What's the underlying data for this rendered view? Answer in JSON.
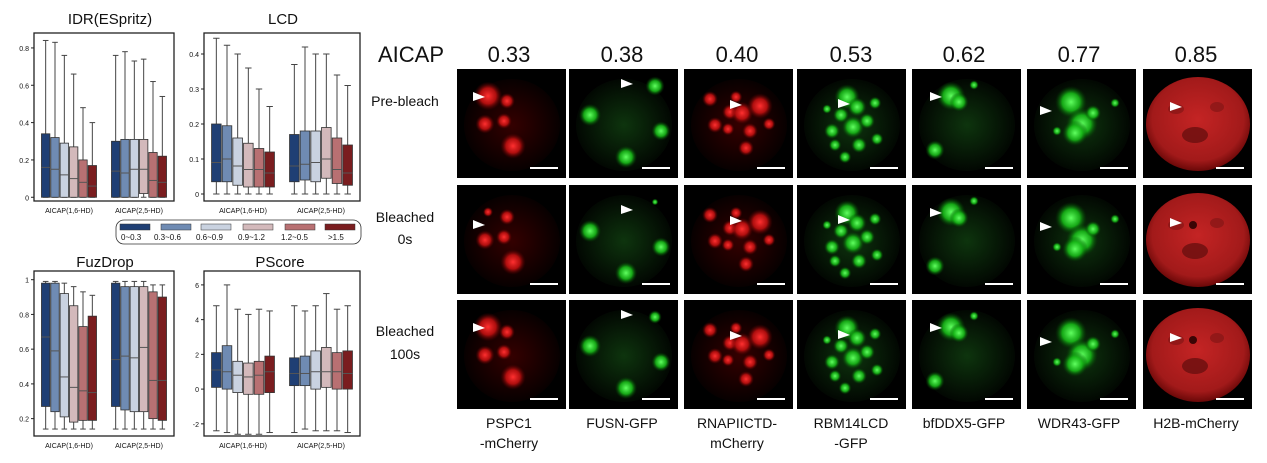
{
  "figure": {
    "panels": [
      {
        "title": "IDR(ESpritz)",
        "yticks": [
          0.0,
          0.2,
          0.4,
          0.6,
          0.8
        ],
        "ylim": [
          -0.02,
          0.88
        ],
        "groups": [
          "AICAP(1,6-HD)",
          "AICAP(2,5-HD)"
        ],
        "boxes": [
          [
            {
              "low": 0.0,
              "q1": 0.0,
              "med": 0.16,
              "q3": 0.34,
              "high": 0.84
            },
            {
              "low": 0.0,
              "q1": 0.0,
              "med": 0.15,
              "q3": 0.32,
              "high": 0.83
            },
            {
              "low": 0.0,
              "q1": 0.0,
              "med": 0.12,
              "q3": 0.29,
              "high": 0.76
            },
            {
              "low": 0.0,
              "q1": 0.0,
              "med": 0.1,
              "q3": 0.27,
              "high": 0.66
            },
            {
              "low": 0.0,
              "q1": 0.0,
              "med": 0.08,
              "q3": 0.2,
              "high": 0.48
            },
            {
              "low": 0.0,
              "q1": 0.0,
              "med": 0.06,
              "q3": 0.17,
              "high": 0.4
            }
          ],
          [
            {
              "low": 0.0,
              "q1": 0.0,
              "med": 0.14,
              "q3": 0.3,
              "high": 0.76
            },
            {
              "low": 0.0,
              "q1": 0.0,
              "med": 0.13,
              "q3": 0.31,
              "high": 0.78
            },
            {
              "low": 0.0,
              "q1": 0.0,
              "med": 0.15,
              "q3": 0.31,
              "high": 0.73
            },
            {
              "low": 0.0,
              "q1": 0.02,
              "med": 0.15,
              "q3": 0.31,
              "high": 0.74
            },
            {
              "low": 0.0,
              "q1": 0.0,
              "med": 0.09,
              "q3": 0.24,
              "high": 0.62
            },
            {
              "low": 0.0,
              "q1": 0.0,
              "med": 0.08,
              "q3": 0.22,
              "high": 0.54
            }
          ]
        ]
      },
      {
        "title": "LCD",
        "yticks": [
          0.0,
          0.1,
          0.2,
          0.3,
          0.4
        ],
        "ylim": [
          -0.02,
          0.46
        ],
        "groups": [
          "AICAP(1,6-HD)",
          "AICAP(2,5-HD)"
        ],
        "boxes": [
          [
            {
              "low": 0.0,
              "q1": 0.035,
              "med": 0.09,
              "q3": 0.2,
              "high": 0.445
            },
            {
              "low": 0.0,
              "q1": 0.035,
              "med": 0.1,
              "q3": 0.195,
              "high": 0.425
            },
            {
              "low": 0.0,
              "q1": 0.025,
              "med": 0.08,
              "q3": 0.16,
              "high": 0.4
            },
            {
              "low": 0.0,
              "q1": 0.02,
              "med": 0.07,
              "q3": 0.145,
              "high": 0.36
            },
            {
              "low": 0.0,
              "q1": 0.02,
              "med": 0.07,
              "q3": 0.13,
              "high": 0.3
            },
            {
              "low": 0.0,
              "q1": 0.02,
              "med": 0.06,
              "q3": 0.12,
              "high": 0.25
            }
          ],
          [
            {
              "low": 0.0,
              "q1": 0.035,
              "med": 0.08,
              "q3": 0.17,
              "high": 0.37
            },
            {
              "low": 0.0,
              "q1": 0.04,
              "med": 0.085,
              "q3": 0.18,
              "high": 0.42
            },
            {
              "low": 0.0,
              "q1": 0.035,
              "med": 0.09,
              "q3": 0.18,
              "high": 0.4
            },
            {
              "low": 0.0,
              "q1": 0.045,
              "med": 0.1,
              "q3": 0.19,
              "high": 0.4
            },
            {
              "low": 0.0,
              "q1": 0.03,
              "med": 0.07,
              "q3": 0.16,
              "high": 0.34
            },
            {
              "low": 0.0,
              "q1": 0.025,
              "med": 0.06,
              "q3": 0.14,
              "high": 0.31
            }
          ]
        ]
      },
      {
        "title": "FuzDrop",
        "yticks": [
          0.2,
          0.4,
          0.6,
          0.8,
          1.0
        ],
        "ylim": [
          0.1,
          1.05
        ],
        "groups": [
          "AICAP(1,6-HD)",
          "AICAP(2,5-HD)"
        ],
        "boxes": [
          [
            {
              "low": 0.14,
              "q1": 0.27,
              "med": 0.67,
              "q3": 0.98,
              "high": 0.99
            },
            {
              "low": 0.14,
              "q1": 0.24,
              "med": 0.59,
              "q3": 0.98,
              "high": 0.99
            },
            {
              "low": 0.14,
              "q1": 0.21,
              "med": 0.44,
              "q3": 0.92,
              "high": 0.98
            },
            {
              "low": 0.14,
              "q1": 0.18,
              "med": 0.38,
              "q3": 0.85,
              "high": 0.96
            },
            {
              "low": 0.14,
              "q1": 0.19,
              "med": 0.36,
              "q3": 0.73,
              "high": 0.93
            },
            {
              "low": 0.14,
              "q1": 0.19,
              "med": 0.35,
              "q3": 0.79,
              "high": 0.91
            }
          ],
          [
            {
              "low": 0.14,
              "q1": 0.27,
              "med": 0.54,
              "q3": 0.98,
              "high": 0.99
            },
            {
              "low": 0.14,
              "q1": 0.25,
              "med": 0.56,
              "q3": 0.96,
              "high": 0.99
            },
            {
              "low": 0.14,
              "q1": 0.24,
              "med": 0.55,
              "q3": 0.96,
              "high": 0.99
            },
            {
              "low": 0.14,
              "q1": 0.24,
              "med": 0.61,
              "q3": 0.96,
              "high": 0.99
            },
            {
              "low": 0.14,
              "q1": 0.2,
              "med": 0.42,
              "q3": 0.93,
              "high": 0.97
            },
            {
              "low": 0.14,
              "q1": 0.19,
              "med": 0.42,
              "q3": 0.9,
              "high": 0.97
            }
          ]
        ]
      },
      {
        "title": "PScore",
        "yticks": [
          -2,
          0,
          2,
          4,
          6
        ],
        "ylim": [
          -2.7,
          6.8
        ],
        "groups": [
          "AICAP(1,6-HD)",
          "AICAP(2,5-HD)"
        ],
        "boxes": [
          [
            {
              "low": -2.4,
              "q1": 0.1,
              "med": 1.1,
              "q3": 2.1,
              "high": 4.8
            },
            {
              "low": -2.5,
              "q1": 0.0,
              "med": 1.0,
              "q3": 2.5,
              "high": 6.0
            },
            {
              "low": -2.6,
              "q1": -0.2,
              "med": 0.8,
              "q3": 1.6,
              "high": 4.6
            },
            {
              "low": -2.6,
              "q1": -0.3,
              "med": 0.7,
              "q3": 1.5,
              "high": 4.3
            },
            {
              "low": -2.6,
              "q1": -0.3,
              "med": 0.8,
              "q3": 1.6,
              "high": 4.6
            },
            {
              "low": -2.5,
              "q1": -0.2,
              "med": 1.0,
              "q3": 1.9,
              "high": 4.5
            }
          ],
          [
            {
              "low": -2.5,
              "q1": 0.2,
              "med": 0.9,
              "q3": 1.8,
              "high": 4.8
            },
            {
              "low": -2.3,
              "q1": 0.2,
              "med": 0.9,
              "q3": 1.9,
              "high": 4.5
            },
            {
              "low": -2.4,
              "q1": 0.0,
              "med": 1.0,
              "q3": 2.2,
              "high": 4.8
            },
            {
              "low": -2.4,
              "q1": 0.1,
              "med": 1.0,
              "q3": 2.4,
              "high": 5.5
            },
            {
              "low": -2.4,
              "q1": 0.0,
              "med": 1.0,
              "q3": 2.1,
              "high": 4.6
            },
            {
              "low": -2.5,
              "q1": 0.0,
              "med": 0.9,
              "q3": 2.2,
              "high": 4.8
            }
          ]
        ]
      }
    ],
    "legend": {
      "labels": [
        "0~0.3",
        "0.3~0.6",
        "0.6~0.9",
        "0.9~1.2",
        "1.2~0.5",
        ">1.5"
      ],
      "colors": [
        "#1f3f74",
        "#6f8bb3",
        "#c9d2e0",
        "#d3b9bb",
        "#b87072",
        "#7a1d1f"
      ]
    },
    "microscopy": {
      "header_label": "AICAP",
      "row_labels": [
        [
          "Pre-bleach"
        ],
        [
          "Bleached",
          "0s"
        ],
        [
          "Bleached",
          "100s"
        ]
      ],
      "columns": [
        {
          "value": "0.33",
          "label": [
            "PSPC1",
            "-mCherry"
          ],
          "color": "red"
        },
        {
          "value": "0.38",
          "label": [
            "FUSN-GFP"
          ],
          "color": "green"
        },
        {
          "value": "0.40",
          "label": [
            "RNAPIICTD-",
            "mCherry"
          ],
          "color": "red"
        },
        {
          "value": "0.53",
          "label": [
            "RBM14LCD",
            "-GFP"
          ],
          "color": "green"
        },
        {
          "value": "0.62",
          "label": [
            "bfDDX5-GFP"
          ],
          "color": "green"
        },
        {
          "value": "0.77",
          "label": [
            "WDR43-GFP"
          ],
          "color": "green"
        },
        {
          "value": "0.85",
          "label": [
            "H2B-mCherry"
          ],
          "color": "red"
        }
      ]
    }
  }
}
